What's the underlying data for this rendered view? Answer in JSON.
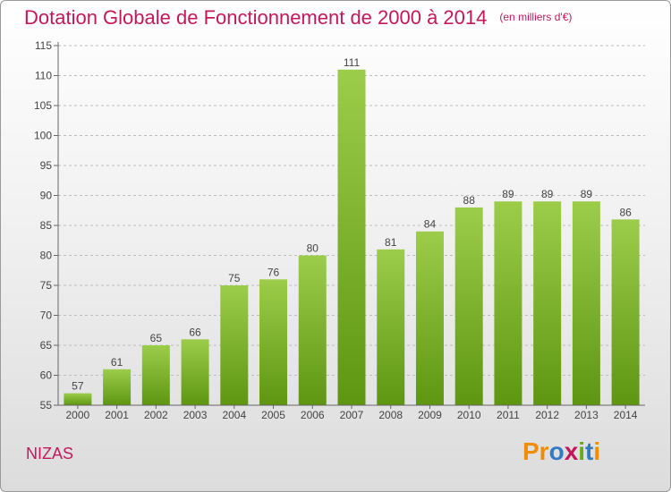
{
  "header": {
    "title": "Dotation Globale de Fonctionnement de 2000 à 2014",
    "unit": "(en milliers d'€)"
  },
  "footer": {
    "commune": "NIZAS",
    "logo_text": "Proxiti"
  },
  "colors": {
    "bar_top": "#9ccd4a",
    "bar_bottom": "#5e9611",
    "title": "#c2185b",
    "grid": "#bdbdbd"
  },
  "chart_data": {
    "type": "bar",
    "title": "Dotation Globale de Fonctionnement de 2000 à 2014",
    "subtitle": "(en milliers d'€)",
    "categories": [
      "2000",
      "2001",
      "2002",
      "2003",
      "2004",
      "2005",
      "2006",
      "2007",
      "2008",
      "2009",
      "2010",
      "2011",
      "2012",
      "2013",
      "2014"
    ],
    "values": [
      57,
      61,
      65,
      66,
      75,
      76,
      80,
      111,
      81,
      84,
      88,
      89,
      89,
      89,
      86
    ],
    "ylim": [
      55,
      115
    ],
    "yticks": [
      55,
      60,
      65,
      70,
      75,
      80,
      85,
      90,
      95,
      100,
      105,
      110,
      115
    ],
    "grid": true,
    "data_labels": true
  }
}
